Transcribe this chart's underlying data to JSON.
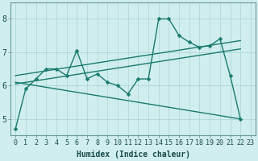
{
  "xlabel": "Humidex (Indice chaleur)",
  "bg_color": "#d0eeee",
  "grid_color": "#aad4d4",
  "line_color": "#1a7a6e",
  "spine_color": "#6a9a9a",
  "x_data": [
    0,
    1,
    2,
    3,
    4,
    5,
    6,
    7,
    8,
    9,
    10,
    11,
    12,
    13,
    14,
    15,
    16,
    17,
    18,
    19,
    20,
    21,
    22,
    23
  ],
  "y_main": [
    4.7,
    5.9,
    6.2,
    6.5,
    6.5,
    6.3,
    7.05,
    6.2,
    6.35,
    6.1,
    6.0,
    5.75,
    6.2,
    6.2,
    8.0,
    8.0,
    7.5,
    7.3,
    7.15,
    7.2,
    7.4,
    6.3,
    5.0,
    null
  ],
  "trend1_x": [
    0,
    22
  ],
  "trend1_y": [
    6.05,
    7.1
  ],
  "trend2_x": [
    0,
    22
  ],
  "trend2_y": [
    6.3,
    7.35
  ],
  "trend3_x": [
    0,
    22
  ],
  "trend3_y": [
    6.1,
    5.0
  ],
  "ylim": [
    4.5,
    8.5
  ],
  "yticks": [
    5,
    6,
    7,
    8
  ],
  "xticks": [
    0,
    1,
    2,
    3,
    4,
    5,
    6,
    7,
    8,
    9,
    10,
    11,
    12,
    13,
    14,
    15,
    16,
    17,
    18,
    19,
    20,
    21,
    22,
    23
  ],
  "markersize": 2.5,
  "linewidth": 1.0,
  "tick_fontsize": 6.0,
  "xlabel_fontsize": 7.0
}
